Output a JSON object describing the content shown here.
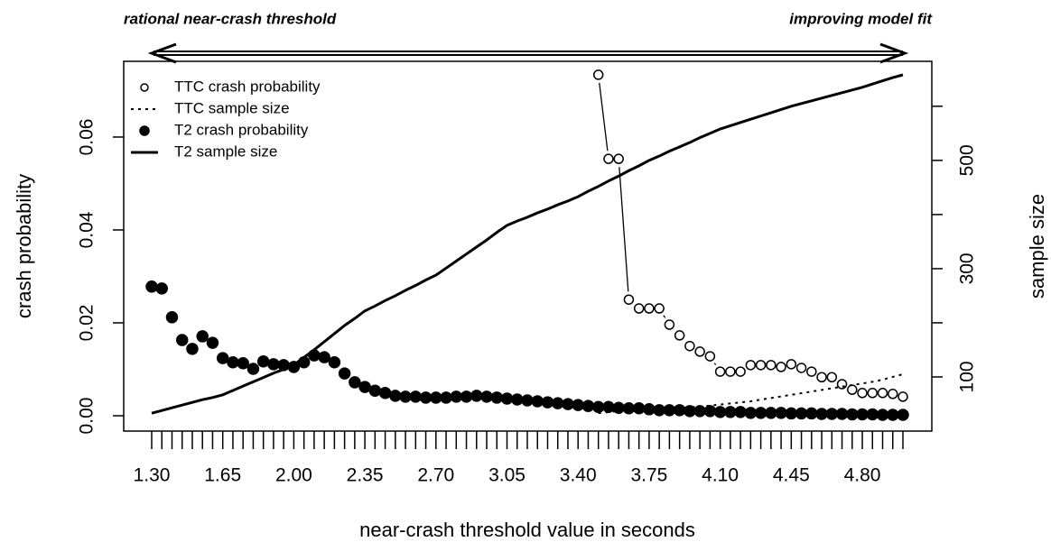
{
  "chart_data": {
    "type": "line",
    "annotations": [
      "rational near-crash threshold",
      "improving model fit"
    ],
    "x_label": "near-crash threshold value in seconds",
    "y_label": "crash probability",
    "y2_label": "sample size",
    "categories": [
      "1.30",
      null,
      null,
      null,
      null,
      null,
      null,
      "1.65",
      null,
      null,
      null,
      null,
      null,
      null,
      "2.00",
      null,
      null,
      null,
      null,
      null,
      null,
      "2.35",
      null,
      null,
      null,
      null,
      null,
      null,
      "2.70",
      null,
      null,
      null,
      null,
      null,
      null,
      "3.05",
      null,
      null,
      null,
      null,
      null,
      null,
      "3.40",
      null,
      null,
      null,
      null,
      null,
      null,
      "3.75",
      null,
      null,
      null,
      null,
      null,
      null,
      "4.10",
      null,
      null,
      null,
      null,
      null,
      null,
      "4.45",
      null,
      null,
      null,
      null,
      null,
      null,
      "4.80",
      null,
      null,
      null,
      null
    ],
    "ylim": [
      -0.0033,
      0.0763
    ],
    "yticks": [
      {
        "value": 0,
        "label": "0.00"
      },
      {
        "value": 0.02,
        "label": "0.02"
      },
      {
        "value": 0.04,
        "label": "0.04"
      },
      {
        "value": 0.06,
        "label": "0.06"
      }
    ],
    "y2lim": [
      0,
      683
    ],
    "y2ticks": [
      100,
      300,
      500
    ],
    "y2minorticks": [
      200,
      400,
      600
    ],
    "legend": "top-left",
    "series": [
      {
        "name": "TTC crash probability",
        "kind": "points",
        "filled": false,
        "connected": true,
        "color": "#000000",
        "values": [
          null,
          null,
          null,
          null,
          null,
          null,
          null,
          null,
          null,
          null,
          null,
          null,
          null,
          null,
          null,
          null,
          null,
          null,
          null,
          null,
          null,
          null,
          null,
          null,
          null,
          null,
          null,
          null,
          null,
          null,
          null,
          null,
          null,
          null,
          null,
          null,
          null,
          null,
          null,
          null,
          null,
          null,
          null,
          null,
          0.0734,
          0.0553,
          0.0553,
          0.025,
          0.0231,
          0.0231,
          0.0231,
          0.0196,
          0.0173,
          0.015,
          0.0138,
          0.0128,
          0.0095,
          0.0095,
          0.0095,
          0.0109,
          0.0109,
          0.0109,
          0.0105,
          0.0111,
          0.0103,
          0.0095,
          0.0083,
          0.0083,
          0.0068,
          0.0056,
          0.0049,
          0.0049,
          0.0049,
          0.0047,
          0.0041
        ]
      },
      {
        "name": "TTC sample size",
        "kind": "line",
        "dashed": true,
        "axis": "y2",
        "color": "#000000",
        "values": [
          null,
          null,
          null,
          null,
          null,
          null,
          null,
          null,
          null,
          null,
          null,
          null,
          null,
          null,
          null,
          null,
          null,
          null,
          null,
          null,
          null,
          null,
          null,
          null,
          null,
          null,
          null,
          null,
          null,
          null,
          null,
          null,
          null,
          null,
          null,
          null,
          null,
          null,
          null,
          null,
          null,
          null,
          null,
          null,
          33,
          35,
          37,
          38,
          39,
          40,
          41,
          42,
          43,
          44,
          45,
          47,
          49,
          51,
          53,
          55,
          58,
          61,
          64,
          67,
          70,
          73,
          76,
          79,
          82,
          85,
          88,
          91,
          95,
          100,
          105
        ]
      },
      {
        "name": "T2 crash probability",
        "kind": "points",
        "filled": true,
        "connected": false,
        "color": "#000000",
        "values": [
          0.0278,
          0.0274,
          0.0212,
          0.0163,
          0.0144,
          0.0171,
          0.0157,
          0.0124,
          0.0115,
          0.0113,
          0.0101,
          0.0117,
          0.0111,
          0.0109,
          0.0105,
          0.0115,
          0.013,
          0.0126,
          0.0115,
          0.0091,
          0.0072,
          0.0062,
          0.0054,
          0.0049,
          0.0043,
          0.0041,
          0.0041,
          0.0039,
          0.0039,
          0.0039,
          0.0041,
          0.0041,
          0.0043,
          0.0041,
          0.0039,
          0.0037,
          0.0035,
          0.0033,
          0.0031,
          0.0029,
          0.0027,
          0.0025,
          0.0023,
          0.0021,
          0.0019,
          0.0019,
          0.0017,
          0.0016,
          0.0016,
          0.0014,
          0.0012,
          0.0012,
          0.0012,
          0.001,
          0.001,
          0.001,
          0.0008,
          0.0008,
          0.0008,
          0.0006,
          0.0006,
          0.0006,
          0.0006,
          0.0005,
          0.0005,
          0.0005,
          0.0004,
          0.0004,
          0.0004,
          0.0003,
          0.0003,
          0.0003,
          0.0002,
          0.0002,
          0.0002
        ]
      },
      {
        "name": "T2 sample size",
        "kind": "line",
        "dashed": false,
        "axis": "y2",
        "color": "#000000",
        "values": [
          33,
          38,
          43,
          48,
          53,
          58,
          62,
          67,
          75,
          83,
          91,
          99,
          107,
          114,
          122,
          136,
          150,
          165,
          180,
          195,
          208,
          222,
          231,
          241,
          250,
          260,
          269,
          279,
          288,
          301,
          314,
          327,
          340,
          353,
          367,
          380,
          388,
          395,
          403,
          410,
          418,
          425,
          433,
          443,
          452,
          462,
          471,
          481,
          490,
          500,
          508,
          517,
          525,
          533,
          542,
          550,
          558,
          564,
          570,
          576,
          582,
          588,
          594,
          600,
          605,
          610,
          615,
          620,
          625,
          630,
          635,
          641,
          647,
          653,
          658
        ]
      }
    ]
  }
}
